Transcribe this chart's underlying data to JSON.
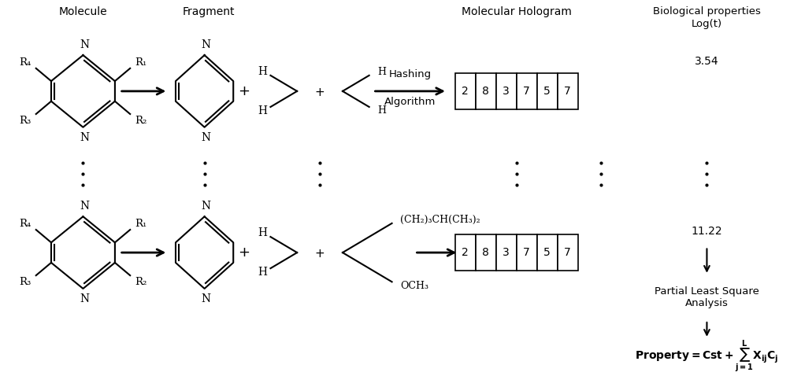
{
  "bg_color": "#ffffff",
  "text_color": "#000000",
  "molecule_label": "Molecule",
  "fragment_label": "Fragment",
  "molhologram_label": "Molecular Hologram",
  "bioprop_line1": "Biological properties",
  "bioprop_line2": "Log(t)",
  "val_top": "3.54",
  "val_bottom": "11.22",
  "hologram_values": [
    "2",
    "8",
    "3",
    "7",
    "5",
    "7"
  ],
  "pls_label": "Partial Least Square\nAnalysis",
  "ch2_label": "(CH₂)₃CH(CH₃)₂",
  "och3_label": "OCH₃",
  "hashing_line1": "Hashing",
  "hashing_line2": "Algorithm"
}
